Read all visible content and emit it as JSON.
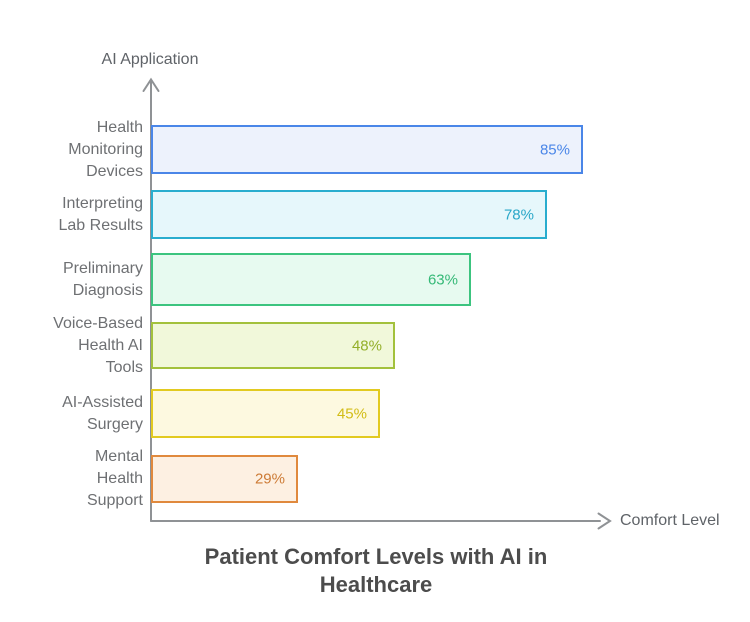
{
  "title": {
    "text": "Patient Comfort Levels with AI in Healthcare",
    "color": "#4c4c4c"
  },
  "axes": {
    "y_label": "AI Application",
    "x_label": "Comfort Level",
    "line_color": "#8f9295",
    "title_color": "#5f6368"
  },
  "label_color": "#6e7073",
  "bars": [
    {
      "label": "Health\nMonitoring\nDevices",
      "value": 85,
      "value_label": "85%",
      "border_color": "#4a86e8",
      "fill_color": "#edf2fc",
      "value_color": "#4a86e8"
    },
    {
      "label": "Interpreting\nLab Results",
      "value": 78,
      "value_label": "78%",
      "border_color": "#29adce",
      "fill_color": "#e6f7fb",
      "value_color": "#29a7c8"
    },
    {
      "label": "Preliminary\nDiagnosis",
      "value": 63,
      "value_label": "63%",
      "border_color": "#3cc47f",
      "fill_color": "#e7faf0",
      "value_color": "#35b977"
    },
    {
      "label": "Voice-Based\nHealth AI\nTools",
      "value": 48,
      "value_label": "48%",
      "border_color": "#a3c13c",
      "fill_color": "#f1f8da",
      "value_color": "#93af29"
    },
    {
      "label": "AI-Assisted\nSurgery",
      "value": 45,
      "value_label": "45%",
      "border_color": "#e2ca20",
      "fill_color": "#fdf9e0",
      "value_color": "#d2bc15"
    },
    {
      "label": "Mental\nHealth\nSupport",
      "value": 29,
      "value_label": "29%",
      "border_color": "#e0893d",
      "fill_color": "#fdf0e2",
      "value_color": "#cd7b36"
    }
  ],
  "chart_data": {
    "type": "bar",
    "orientation": "horizontal",
    "title": "Patient Comfort Levels with AI in Healthcare",
    "xlabel": "Comfort Level",
    "ylabel": "AI Application",
    "xlim": [
      0,
      100
    ],
    "grid": false,
    "legend": false,
    "value_unit": "%",
    "categories": [
      "Health Monitoring Devices",
      "Interpreting Lab Results",
      "Preliminary Diagnosis",
      "Voice-Based Health AI Tools",
      "AI-Assisted Surgery",
      "Mental Health Support"
    ],
    "values": [
      85,
      78,
      63,
      48,
      45,
      29
    ],
    "value_labels": [
      "85%",
      "78%",
      "63%",
      "48%",
      "45%",
      "29%"
    ],
    "bar_colors": [
      "#4a86e8",
      "#29adce",
      "#3cc47f",
      "#a3c13c",
      "#e2ca20",
      "#e0893d"
    ]
  }
}
